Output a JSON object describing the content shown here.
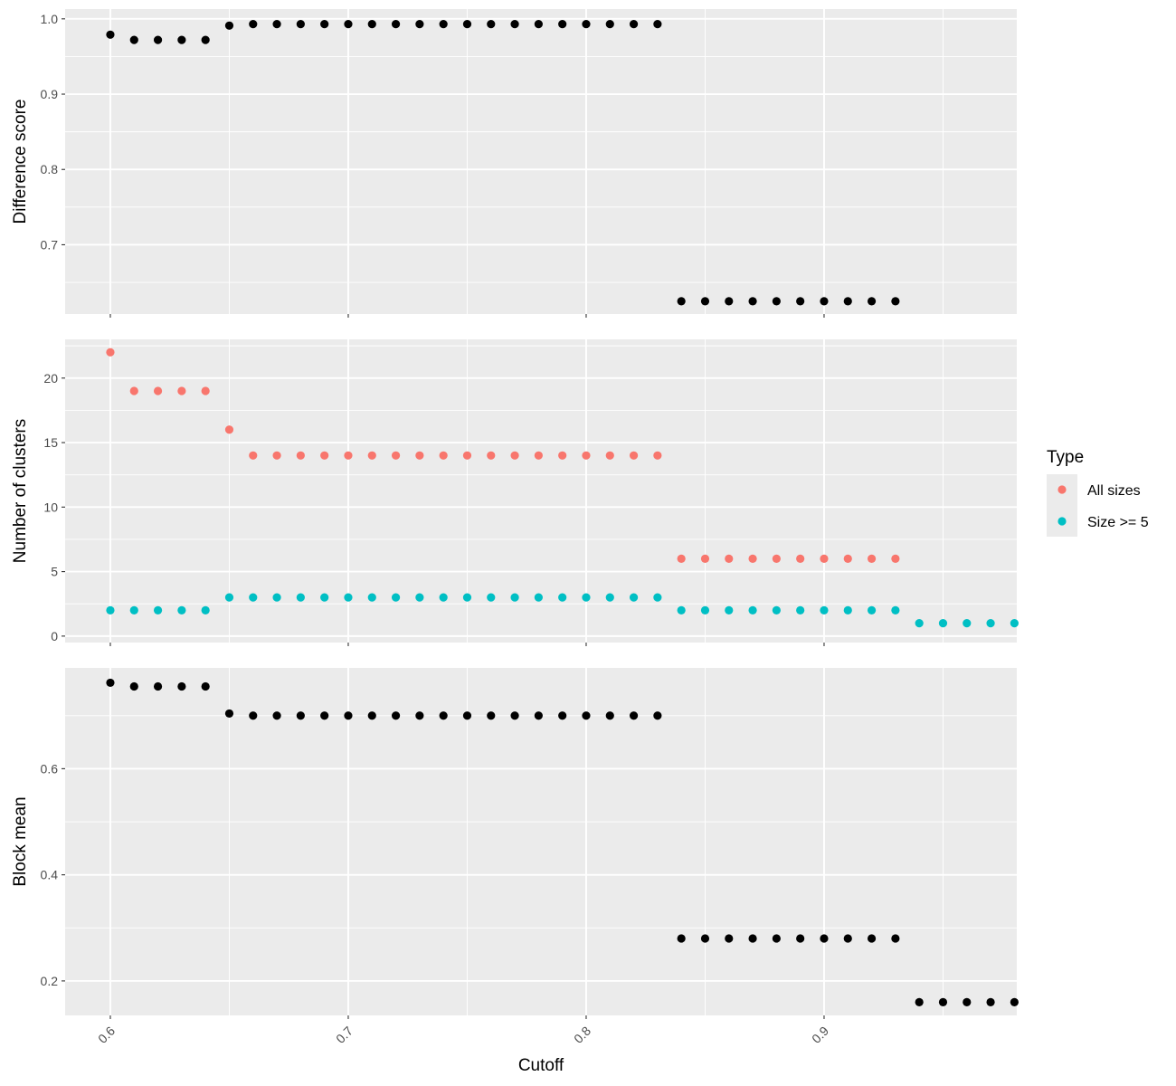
{
  "chart_data": {
    "type": "scatter",
    "x_axis": {
      "label": "Cutoff",
      "ticks": [
        "0.6",
        "0.7",
        "0.8",
        "0.9"
      ],
      "tick_values": [
        0.6,
        0.7,
        0.8,
        0.9
      ],
      "range": [
        0.581,
        0.981
      ],
      "tick_label_rotation": "45 degrees"
    },
    "panels": [
      {
        "ylabel": "Difference score",
        "ylim": [
          0.608,
          1.013
        ],
        "y_ticks": [
          "0.7",
          "0.8",
          "0.9",
          "1.0"
        ],
        "y_tick_values": [
          0.7,
          0.8,
          0.9,
          1.0
        ],
        "series": [
          {
            "color": "#000000",
            "x": [
              0.6,
              0.61,
              0.62,
              0.63,
              0.64,
              0.65,
              0.66,
              0.67,
              0.68,
              0.69,
              0.7,
              0.71,
              0.72,
              0.73,
              0.74,
              0.75,
              0.76,
              0.77,
              0.78,
              0.79,
              0.8,
              0.81,
              0.82,
              0.83,
              0.84,
              0.85,
              0.86,
              0.87,
              0.88,
              0.89,
              0.9,
              0.91,
              0.92,
              0.93
            ],
            "y": [
              0.979,
              0.972,
              0.972,
              0.972,
              0.972,
              0.991,
              0.993,
              0.993,
              0.993,
              0.993,
              0.993,
              0.993,
              0.993,
              0.993,
              0.993,
              0.993,
              0.993,
              0.993,
              0.993,
              0.993,
              0.993,
              0.993,
              0.993,
              0.993,
              0.625,
              0.625,
              0.625,
              0.625,
              0.625,
              0.625,
              0.625,
              0.625,
              0.625,
              0.625
            ]
          }
        ]
      },
      {
        "ylabel": "Number of clusters",
        "ylim": [
          -0.5,
          23.0
        ],
        "y_ticks": [
          "0",
          "5",
          "10",
          "15",
          "20"
        ],
        "y_tick_values": [
          0,
          5,
          10,
          15,
          20
        ],
        "series": [
          {
            "name": "All sizes",
            "color": "#F8766D",
            "x": [
              0.6,
              0.61,
              0.62,
              0.63,
              0.64,
              0.65,
              0.66,
              0.67,
              0.68,
              0.69,
              0.7,
              0.71,
              0.72,
              0.73,
              0.74,
              0.75,
              0.76,
              0.77,
              0.78,
              0.79,
              0.8,
              0.81,
              0.82,
              0.83,
              0.84,
              0.85,
              0.86,
              0.87,
              0.88,
              0.89,
              0.9,
              0.91,
              0.92,
              0.93
            ],
            "y": [
              22,
              19,
              19,
              19,
              19,
              16,
              14,
              14,
              14,
              14,
              14,
              14,
              14,
              14,
              14,
              14,
              14,
              14,
              14,
              14,
              14,
              14,
              14,
              14,
              6,
              6,
              6,
              6,
              6,
              6,
              6,
              6,
              6,
              6
            ]
          },
          {
            "name": "Size >= 5",
            "color": "#00BFC4",
            "x": [
              0.6,
              0.61,
              0.62,
              0.63,
              0.64,
              0.65,
              0.66,
              0.67,
              0.68,
              0.69,
              0.7,
              0.71,
              0.72,
              0.73,
              0.74,
              0.75,
              0.76,
              0.77,
              0.78,
              0.79,
              0.8,
              0.81,
              0.82,
              0.83,
              0.84,
              0.85,
              0.86,
              0.87,
              0.88,
              0.89,
              0.9,
              0.91,
              0.92,
              0.93,
              0.94,
              0.95,
              0.96,
              0.97,
              0.98
            ],
            "y": [
              2,
              2,
              2,
              2,
              2,
              3,
              3,
              3,
              3,
              3,
              3,
              3,
              3,
              3,
              3,
              3,
              3,
              3,
              3,
              3,
              3,
              3,
              3,
              3,
              2,
              2,
              2,
              2,
              2,
              2,
              2,
              2,
              2,
              2,
              1,
              1,
              1,
              1,
              1
            ]
          }
        ]
      },
      {
        "ylabel": "Block mean",
        "ylim": [
          0.135,
          0.79
        ],
        "y_ticks": [
          "0.2",
          "0.4",
          "0.6"
        ],
        "y_tick_values": [
          0.2,
          0.4,
          0.6
        ],
        "series": [
          {
            "color": "#000000",
            "x": [
              0.6,
              0.61,
              0.62,
              0.63,
              0.64,
              0.65,
              0.66,
              0.67,
              0.68,
              0.69,
              0.7,
              0.71,
              0.72,
              0.73,
              0.74,
              0.75,
              0.76,
              0.77,
              0.78,
              0.79,
              0.8,
              0.81,
              0.82,
              0.83,
              0.84,
              0.85,
              0.86,
              0.87,
              0.88,
              0.89,
              0.9,
              0.91,
              0.92,
              0.93,
              0.94,
              0.95,
              0.96,
              0.97,
              0.98
            ],
            "y": [
              0.762,
              0.755,
              0.755,
              0.755,
              0.755,
              0.704,
              0.7,
              0.7,
              0.7,
              0.7,
              0.7,
              0.7,
              0.7,
              0.7,
              0.7,
              0.7,
              0.7,
              0.7,
              0.7,
              0.7,
              0.7,
              0.7,
              0.7,
              0.7,
              0.28,
              0.28,
              0.28,
              0.28,
              0.28,
              0.28,
              0.28,
              0.28,
              0.28,
              0.28,
              0.16,
              0.16,
              0.16,
              0.16,
              0.16
            ]
          }
        ]
      }
    ],
    "legend": {
      "title": "Type",
      "placement": "right",
      "entries": [
        {
          "label": "All sizes",
          "color": "#F8766D"
        },
        {
          "label": "Size >= 5",
          "color": "#00BFC4"
        }
      ]
    },
    "panel_background": "#EBEBEB",
    "gridline_color": "#FFFFFF",
    "grid": true
  }
}
